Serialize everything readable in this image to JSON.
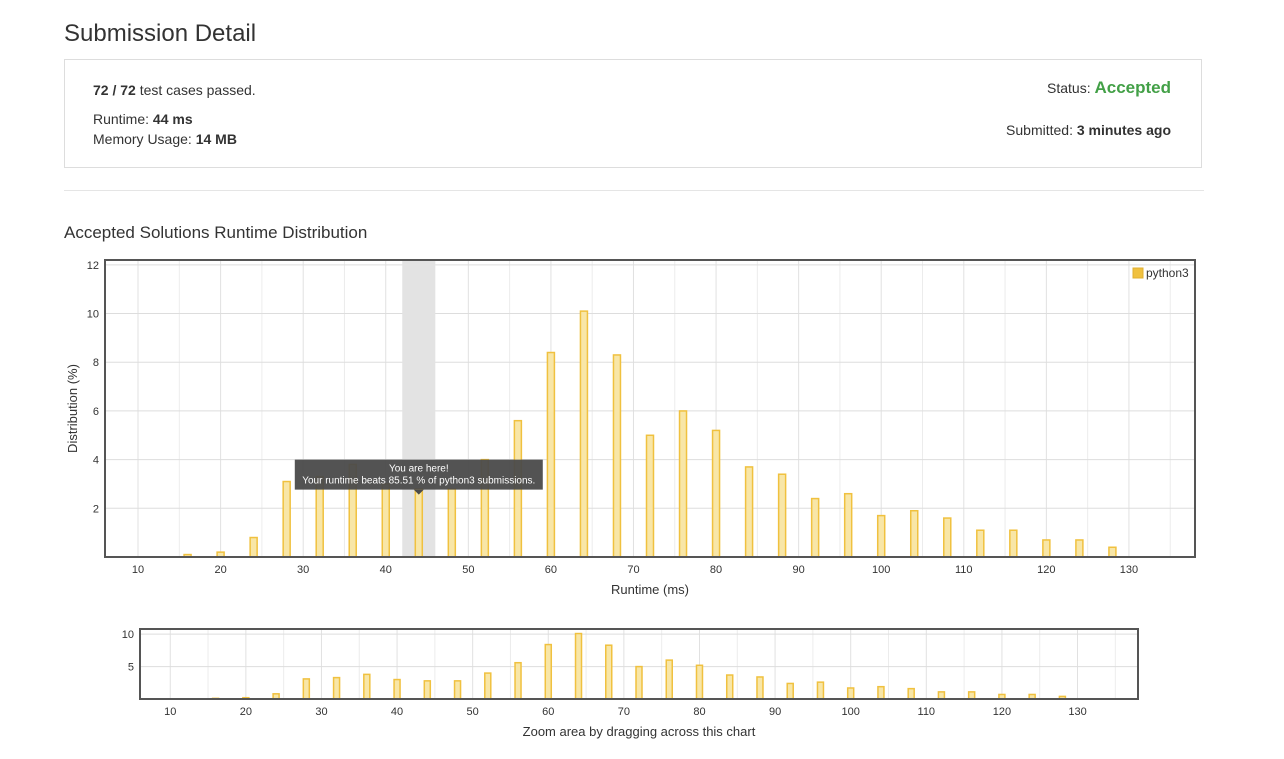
{
  "page": {
    "title": "Submission Detail"
  },
  "summary": {
    "tests_passed": "72 / 72",
    "tests_suffix": " test cases passed.",
    "runtime_label": "Runtime: ",
    "runtime_value": "44 ms",
    "memory_label": "Memory Usage: ",
    "memory_value": "14 MB",
    "status_label": "Status: ",
    "status_value": "Accepted",
    "submitted_label": "Submitted: ",
    "submitted_value": "3 minutes ago",
    "status_color": "#43a047"
  },
  "section": {
    "title": "Accepted Solutions Runtime Distribution"
  },
  "chart_data": [
    {
      "type": "bar",
      "xlabel": "Runtime (ms)",
      "ylabel": "Distribution (%)",
      "xlim": [
        6,
        138
      ],
      "ylim": [
        0,
        12.2
      ],
      "xticks": [
        10,
        20,
        30,
        40,
        50,
        60,
        70,
        80,
        90,
        100,
        110,
        120,
        130
      ],
      "yticks": [
        2,
        4,
        6,
        8,
        10,
        12
      ],
      "bar_color": "#f8e6a7",
      "bar_edge": "#f0c13f",
      "legend": [
        "python3"
      ],
      "legend_position": "top-right",
      "grid": true,
      "series": [
        {
          "name": "python3",
          "x": [
            16,
            20,
            24,
            28,
            32,
            36,
            40,
            44,
            48,
            52,
            56,
            60,
            64,
            68,
            72,
            76,
            80,
            84,
            88,
            92,
            96,
            100,
            104,
            108,
            112,
            116,
            120,
            124,
            128
          ],
          "values": [
            0.1,
            0.2,
            0.8,
            3.1,
            3.3,
            3.8,
            3.0,
            2.8,
            2.8,
            4.0,
            5.6,
            8.4,
            10.1,
            8.3,
            5.0,
            6.0,
            5.2,
            3.7,
            3.4,
            2.4,
            2.6,
            1.7,
            1.9,
            1.6,
            1.1,
            1.1,
            0.7,
            0.7,
            0.4
          ]
        }
      ],
      "highlight": {
        "x": 44,
        "tooltip_title": "You are here!",
        "tooltip_body": "Your runtime beats 85.51 % of python3 submissions."
      }
    },
    {
      "type": "bar",
      "xlabel": "Zoom area by dragging across this chart",
      "xlim": [
        6,
        138
      ],
      "ylim": [
        0,
        10.8
      ],
      "xticks": [
        10,
        20,
        30,
        40,
        50,
        60,
        70,
        80,
        90,
        100,
        110,
        120,
        130
      ],
      "yticks": [
        5,
        10
      ],
      "grid": true,
      "series": [
        {
          "name": "python3",
          "x": [
            16,
            20,
            24,
            28,
            32,
            36,
            40,
            44,
            48,
            52,
            56,
            60,
            64,
            68,
            72,
            76,
            80,
            84,
            88,
            92,
            96,
            100,
            104,
            108,
            112,
            116,
            120,
            124,
            128
          ],
          "values": [
            0.1,
            0.2,
            0.8,
            3.1,
            3.3,
            3.8,
            3.0,
            2.8,
            2.8,
            4.0,
            5.6,
            8.4,
            10.1,
            8.3,
            5.0,
            6.0,
            5.2,
            3.7,
            3.4,
            2.4,
            2.6,
            1.7,
            1.9,
            1.6,
            1.1,
            1.1,
            0.7,
            0.7,
            0.4
          ]
        }
      ]
    }
  ]
}
